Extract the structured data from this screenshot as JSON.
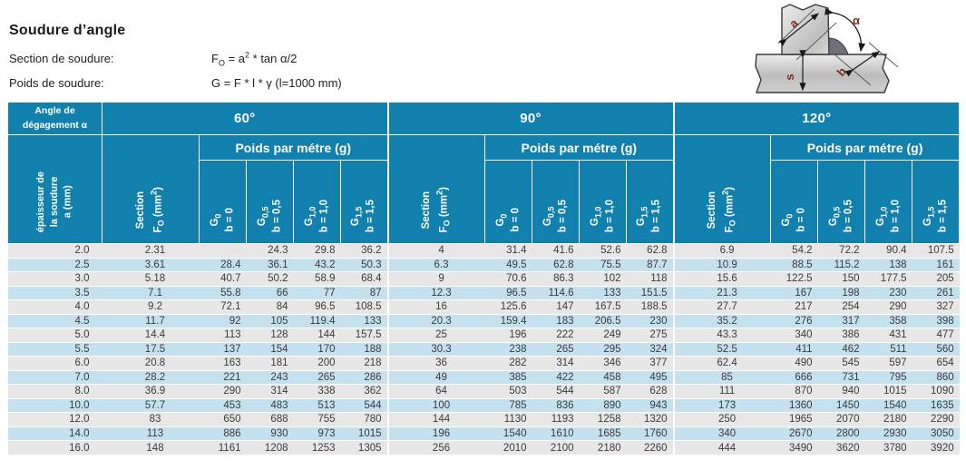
{
  "title": "Soudure d’angle",
  "formulas": {
    "section": {
      "label": "Section de soudure:",
      "f": "F",
      "f_sub": "O",
      "mid": " = a",
      "exp": "2",
      "tail": " * tan α/2"
    },
    "poids": {
      "label": "Poids de soudure:",
      "formula": "G = F * l * γ  (l=1000 mm)"
    }
  },
  "diagram": {
    "label_a": "a",
    "label_alpha": "α",
    "label_s": "s",
    "label_b": "b"
  },
  "table": {
    "corner_line1": "Angle de",
    "corner_line2": "dégagement α",
    "row_axis": [
      "épaisseur de",
      "la soudure",
      "a (mm)"
    ],
    "angles": [
      "60°",
      "90°",
      "120°"
    ],
    "section_header": {
      "line1": "Section",
      "f": "F",
      "sub": "O",
      "unit_a": " (mm",
      "sup": "2",
      "unit_b": ")"
    },
    "poids_header": "Poids par métre (g)",
    "g_cols": [
      {
        "g": "G",
        "sub": "0",
        "b": "b = 0"
      },
      {
        "g": "G",
        "sub": "0,5",
        "b": "b = 0,5"
      },
      {
        "g": "G",
        "sub": "1,0",
        "b": "b = 1,0"
      },
      {
        "g": "G",
        "sub": "1,5",
        "b": "b = 1,5"
      }
    ],
    "rows": [
      [
        "2.0",
        "2.31",
        "",
        "24.3",
        "29.8",
        "36.2",
        "4",
        "31.4",
        "41.6",
        "52.6",
        "62.8",
        "6.9",
        "54.2",
        "72.2",
        "90.4",
        "107.5"
      ],
      [
        "2.5",
        "3.61",
        "28.4",
        "36.1",
        "43.2",
        "50.3",
        "6.3",
        "49.5",
        "62.8",
        "75.5",
        "87.7",
        "10.9",
        "88.5",
        "115.2",
        "138",
        "161"
      ],
      [
        "3.0",
        "5.18",
        "40.7",
        "50.2",
        "58.9",
        "68.4",
        "9",
        "70.6",
        "86.3",
        "102",
        "118",
        "15.6",
        "122.5",
        "150",
        "177.5",
        "205"
      ],
      [
        "3.5",
        "7.1",
        "55.8",
        "66",
        "77",
        "87",
        "12.3",
        "96.5",
        "114.6",
        "133",
        "151.5",
        "21.3",
        "167",
        "198",
        "230",
        "261"
      ],
      [
        "4.0",
        "9.2",
        "72.1",
        "84",
        "96.5",
        "108.5",
        "16",
        "125.6",
        "147",
        "167.5",
        "188.5",
        "27.7",
        "217",
        "254",
        "290",
        "327"
      ],
      [
        "4.5",
        "11.7",
        "92",
        "105",
        "119.4",
        "133",
        "20.3",
        "159.4",
        "183",
        "206.5",
        "230",
        "35.2",
        "276",
        "317",
        "358",
        "398"
      ],
      [
        "5.0",
        "14.4",
        "113",
        "128",
        "144",
        "157.5",
        "25",
        "196",
        "222",
        "249",
        "275",
        "43.3",
        "340",
        "386",
        "431",
        "477"
      ],
      [
        "5.5",
        "17.5",
        "137",
        "154",
        "170",
        "188",
        "30.3",
        "238",
        "265",
        "295",
        "324",
        "52.5",
        "411",
        "462",
        "511",
        "560"
      ],
      [
        "6.0",
        "20.8",
        "163",
        "181",
        "200",
        "218",
        "36",
        "282",
        "314",
        "346",
        "377",
        "62.4",
        "490",
        "545",
        "597",
        "654"
      ],
      [
        "7.0",
        "28.2",
        "221",
        "243",
        "265",
        "286",
        "49",
        "385",
        "422",
        "458",
        "495",
        "85",
        "666",
        "731",
        "795",
        "860"
      ],
      [
        "8.0",
        "36.9",
        "290",
        "314",
        "338",
        "362",
        "64",
        "503",
        "544",
        "587",
        "628",
        "111",
        "870",
        "940",
        "1015",
        "1090"
      ],
      [
        "10.0",
        "57.7",
        "453",
        "483",
        "513",
        "544",
        "100",
        "785",
        "836",
        "890",
        "943",
        "173",
        "1360",
        "1450",
        "1540",
        "1635"
      ],
      [
        "12.0",
        "83",
        "650",
        "688",
        "755",
        "780",
        "144",
        "1130",
        "1193",
        "1258",
        "1320",
        "250",
        "1965",
        "2070",
        "2180",
        "2290"
      ],
      [
        "14.0",
        "113",
        "886",
        "930",
        "973",
        "1015",
        "196",
        "1540",
        "1610",
        "1685",
        "1760",
        "340",
        "2670",
        "2800",
        "2930",
        "3050"
      ],
      [
        "16.0",
        "148",
        "1161",
        "1208",
        "1253",
        "1305",
        "256",
        "2010",
        "2100",
        "2180",
        "2260",
        "444",
        "3490",
        "3620",
        "3780",
        "3920"
      ]
    ]
  },
  "colors": {
    "header_teal": "#1180ad",
    "row_gray": "#e7e7e7",
    "row_blue": "#c5e1f0",
    "dim_label_maroon": "#7b2c1c",
    "weld_gray": "#6e7278"
  }
}
